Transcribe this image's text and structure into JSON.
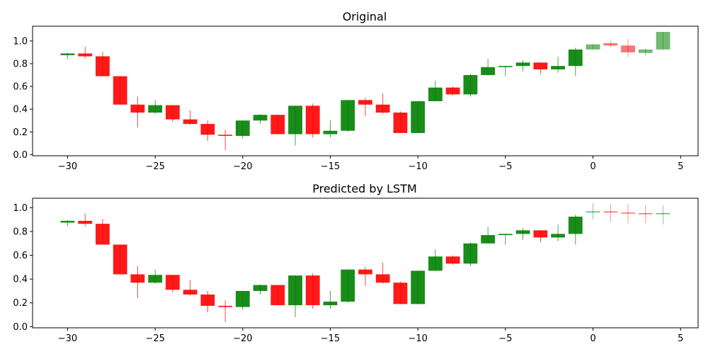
{
  "colors": {
    "up": "#008000",
    "down": "#ff0000",
    "body_opacity": 0.9,
    "forecast_opacity": 0.55
  },
  "chart_data": [
    {
      "type": "candlestick",
      "title": "Original",
      "xlim": [
        -32,
        6
      ],
      "ylim": [
        -0.01,
        1.13
      ],
      "xticks": [
        -30,
        -25,
        -20,
        -15,
        -10,
        -5,
        0,
        5
      ],
      "yticks": [
        0.0,
        0.2,
        0.4,
        0.6,
        0.8,
        1.0
      ],
      "xtick_labels": [
        "−30",
        "−25",
        "−20",
        "−15",
        "−10",
        "−5",
        "0",
        "5"
      ],
      "ytick_labels": [
        "0.0",
        "0.2",
        "0.4",
        "0.6",
        "0.8",
        "1.0"
      ],
      "grid": false,
      "candles": [
        {
          "x": -30,
          "open": 0.875,
          "high": 0.895,
          "low": 0.845,
          "close": 0.89
        },
        {
          "x": -29,
          "open": 0.89,
          "high": 0.95,
          "low": 0.845,
          "close": 0.865
        },
        {
          "x": -28,
          "open": 0.865,
          "high": 0.905,
          "low": 0.69,
          "close": 0.69
        },
        {
          "x": -27,
          "open": 0.69,
          "high": 0.69,
          "low": 0.44,
          "close": 0.44
        },
        {
          "x": -26,
          "open": 0.44,
          "high": 0.51,
          "low": 0.24,
          "close": 0.37
        },
        {
          "x": -25,
          "open": 0.37,
          "high": 0.48,
          "low": 0.36,
          "close": 0.435
        },
        {
          "x": -24,
          "open": 0.435,
          "high": 0.435,
          "low": 0.29,
          "close": 0.31
        },
        {
          "x": -23,
          "open": 0.31,
          "high": 0.39,
          "low": 0.26,
          "close": 0.27
        },
        {
          "x": -22,
          "open": 0.27,
          "high": 0.3,
          "low": 0.12,
          "close": 0.175
        },
        {
          "x": -21,
          "open": 0.175,
          "high": 0.22,
          "low": 0.04,
          "close": 0.165
        },
        {
          "x": -20,
          "open": 0.165,
          "high": 0.3,
          "low": 0.14,
          "close": 0.3
        },
        {
          "x": -19,
          "open": 0.3,
          "high": 0.355,
          "low": 0.27,
          "close": 0.35
        },
        {
          "x": -18,
          "open": 0.35,
          "high": 0.35,
          "low": 0.18,
          "close": 0.18
        },
        {
          "x": -17,
          "open": 0.18,
          "high": 0.43,
          "low": 0.08,
          "close": 0.43
        },
        {
          "x": -16,
          "open": 0.43,
          "high": 0.45,
          "low": 0.15,
          "close": 0.18
        },
        {
          "x": -15,
          "open": 0.18,
          "high": 0.3,
          "low": 0.15,
          "close": 0.21
        },
        {
          "x": -14,
          "open": 0.21,
          "high": 0.48,
          "low": 0.2,
          "close": 0.48
        },
        {
          "x": -13,
          "open": 0.48,
          "high": 0.5,
          "low": 0.34,
          "close": 0.44
        },
        {
          "x": -12,
          "open": 0.44,
          "high": 0.54,
          "low": 0.36,
          "close": 0.37
        },
        {
          "x": -11,
          "open": 0.37,
          "high": 0.38,
          "low": 0.19,
          "close": 0.19
        },
        {
          "x": -10,
          "open": 0.19,
          "high": 0.47,
          "low": 0.19,
          "close": 0.47
        },
        {
          "x": -9,
          "open": 0.47,
          "high": 0.65,
          "low": 0.47,
          "close": 0.59
        },
        {
          "x": -8,
          "open": 0.59,
          "high": 0.6,
          "low": 0.52,
          "close": 0.53
        },
        {
          "x": -7,
          "open": 0.53,
          "high": 0.71,
          "low": 0.51,
          "close": 0.7
        },
        {
          "x": -6,
          "open": 0.7,
          "high": 0.84,
          "low": 0.7,
          "close": 0.77
        },
        {
          "x": -5,
          "open": 0.77,
          "high": 0.78,
          "low": 0.69,
          "close": 0.78
        },
        {
          "x": -4,
          "open": 0.78,
          "high": 0.83,
          "low": 0.73,
          "close": 0.81
        },
        {
          "x": -3,
          "open": 0.81,
          "high": 0.81,
          "low": 0.71,
          "close": 0.75
        },
        {
          "x": -2,
          "open": 0.75,
          "high": 0.86,
          "low": 0.72,
          "close": 0.78
        },
        {
          "x": -1,
          "open": 0.78,
          "high": 0.94,
          "low": 0.69,
          "close": 0.925
        },
        {
          "x": 0,
          "open": 0.925,
          "high": 0.97,
          "low": 0.925,
          "close": 0.97,
          "forecast": true
        },
        {
          "x": 1,
          "open": 0.98,
          "high": 1.0,
          "low": 0.95,
          "close": 0.96,
          "forecast": true
        },
        {
          "x": 2,
          "open": 0.96,
          "high": 1.02,
          "low": 0.86,
          "close": 0.9,
          "forecast": true
        },
        {
          "x": 3,
          "open": 0.895,
          "high": 0.935,
          "low": 0.87,
          "close": 0.925,
          "forecast": true
        },
        {
          "x": 4,
          "open": 0.925,
          "high": 1.08,
          "low": 0.92,
          "close": 1.08,
          "forecast": true
        }
      ]
    },
    {
      "type": "candlestick",
      "title": "Predicted by LSTM",
      "xlim": [
        -32,
        6
      ],
      "ylim": [
        -0.01,
        1.08
      ],
      "xticks": [
        -30,
        -25,
        -20,
        -15,
        -10,
        -5,
        0,
        5
      ],
      "yticks": [
        0.0,
        0.2,
        0.4,
        0.6,
        0.8,
        1.0
      ],
      "xtick_labels": [
        "−30",
        "−25",
        "−20",
        "−15",
        "−10",
        "−5",
        "0",
        "5"
      ],
      "ytick_labels": [
        "0.0",
        "0.2",
        "0.4",
        "0.6",
        "0.8",
        "1.0"
      ],
      "grid": false,
      "candles": [
        {
          "x": -30,
          "open": 0.875,
          "high": 0.895,
          "low": 0.845,
          "close": 0.89
        },
        {
          "x": -29,
          "open": 0.89,
          "high": 0.95,
          "low": 0.845,
          "close": 0.865
        },
        {
          "x": -28,
          "open": 0.865,
          "high": 0.905,
          "low": 0.69,
          "close": 0.69
        },
        {
          "x": -27,
          "open": 0.69,
          "high": 0.69,
          "low": 0.44,
          "close": 0.44
        },
        {
          "x": -26,
          "open": 0.44,
          "high": 0.51,
          "low": 0.24,
          "close": 0.37
        },
        {
          "x": -25,
          "open": 0.37,
          "high": 0.48,
          "low": 0.36,
          "close": 0.435
        },
        {
          "x": -24,
          "open": 0.435,
          "high": 0.435,
          "low": 0.29,
          "close": 0.31
        },
        {
          "x": -23,
          "open": 0.31,
          "high": 0.39,
          "low": 0.26,
          "close": 0.27
        },
        {
          "x": -22,
          "open": 0.27,
          "high": 0.3,
          "low": 0.12,
          "close": 0.175
        },
        {
          "x": -21,
          "open": 0.175,
          "high": 0.22,
          "low": 0.04,
          "close": 0.165
        },
        {
          "x": -20,
          "open": 0.165,
          "high": 0.3,
          "low": 0.14,
          "close": 0.3
        },
        {
          "x": -19,
          "open": 0.3,
          "high": 0.355,
          "low": 0.27,
          "close": 0.35
        },
        {
          "x": -18,
          "open": 0.35,
          "high": 0.35,
          "low": 0.18,
          "close": 0.18
        },
        {
          "x": -17,
          "open": 0.18,
          "high": 0.43,
          "low": 0.08,
          "close": 0.43
        },
        {
          "x": -16,
          "open": 0.43,
          "high": 0.45,
          "low": 0.15,
          "close": 0.18
        },
        {
          "x": -15,
          "open": 0.18,
          "high": 0.3,
          "low": 0.15,
          "close": 0.21
        },
        {
          "x": -14,
          "open": 0.21,
          "high": 0.48,
          "low": 0.2,
          "close": 0.48
        },
        {
          "x": -13,
          "open": 0.48,
          "high": 0.5,
          "low": 0.34,
          "close": 0.44
        },
        {
          "x": -12,
          "open": 0.44,
          "high": 0.54,
          "low": 0.36,
          "close": 0.37
        },
        {
          "x": -11,
          "open": 0.37,
          "high": 0.38,
          "low": 0.19,
          "close": 0.19
        },
        {
          "x": -10,
          "open": 0.19,
          "high": 0.47,
          "low": 0.19,
          "close": 0.47
        },
        {
          "x": -9,
          "open": 0.47,
          "high": 0.65,
          "low": 0.47,
          "close": 0.59
        },
        {
          "x": -8,
          "open": 0.59,
          "high": 0.6,
          "low": 0.52,
          "close": 0.53
        },
        {
          "x": -7,
          "open": 0.53,
          "high": 0.71,
          "low": 0.51,
          "close": 0.7
        },
        {
          "x": -6,
          "open": 0.7,
          "high": 0.84,
          "low": 0.7,
          "close": 0.77
        },
        {
          "x": -5,
          "open": 0.77,
          "high": 0.78,
          "low": 0.69,
          "close": 0.78
        },
        {
          "x": -4,
          "open": 0.78,
          "high": 0.83,
          "low": 0.73,
          "close": 0.81
        },
        {
          "x": -3,
          "open": 0.81,
          "high": 0.81,
          "low": 0.71,
          "close": 0.75
        },
        {
          "x": -2,
          "open": 0.75,
          "high": 0.86,
          "low": 0.72,
          "close": 0.78
        },
        {
          "x": -1,
          "open": 0.78,
          "high": 0.94,
          "low": 0.69,
          "close": 0.925
        },
        {
          "x": 0,
          "open": 0.96,
          "high": 1.04,
          "low": 0.9,
          "close": 0.97,
          "forecast": true
        },
        {
          "x": 1,
          "open": 0.97,
          "high": 1.03,
          "low": 0.88,
          "close": 0.96,
          "forecast": true
        },
        {
          "x": 2,
          "open": 0.96,
          "high": 1.03,
          "low": 0.87,
          "close": 0.955,
          "forecast": true
        },
        {
          "x": 3,
          "open": 0.955,
          "high": 1.02,
          "low": 0.87,
          "close": 0.95,
          "forecast": true
        },
        {
          "x": 4,
          "open": 0.95,
          "high": 1.02,
          "low": 0.86,
          "close": 0.955,
          "forecast": true
        }
      ]
    }
  ]
}
